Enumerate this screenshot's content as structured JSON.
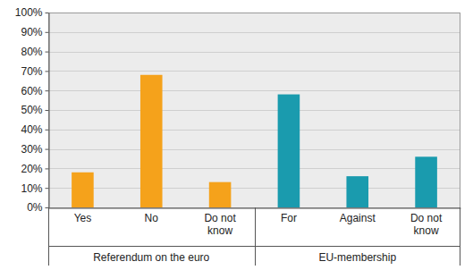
{
  "chart_data": {
    "type": "bar",
    "groups": [
      {
        "name": "Referendum on the euro",
        "categories": [
          "Yes",
          "No",
          "Do not know"
        ],
        "values": [
          18,
          68,
          13
        ],
        "color": "#f5a21b"
      },
      {
        "name": "EU-membership",
        "categories": [
          "For",
          "Against",
          "Do not know"
        ],
        "values": [
          58,
          16,
          26
        ],
        "color": "#1a9bae"
      }
    ],
    "ylim": [
      0,
      100
    ],
    "yticks": [
      {
        "value": 0,
        "label": "0%"
      },
      {
        "value": 10,
        "label": "10%"
      },
      {
        "value": 20,
        "label": "20%"
      },
      {
        "value": 30,
        "label": "30%"
      },
      {
        "value": 40,
        "label": "40%"
      },
      {
        "value": 50,
        "label": "50%"
      },
      {
        "value": 60,
        "label": "60%"
      },
      {
        "value": 70,
        "label": "70%"
      },
      {
        "value": 80,
        "label": "80%"
      },
      {
        "value": 90,
        "label": "90%"
      },
      {
        "value": 100,
        "label": "100%"
      }
    ],
    "grid": true
  }
}
